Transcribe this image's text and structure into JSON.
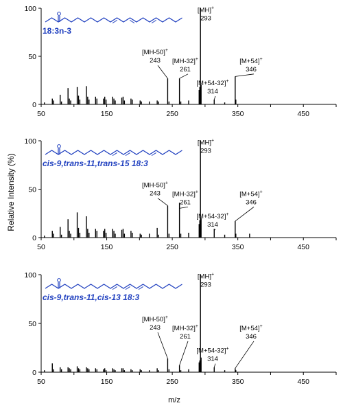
{
  "figure": {
    "ylabel": "Relative Intensity (%)",
    "xlabel": "m/z"
  },
  "chart_data": [
    {
      "type": "bar",
      "title": "18:3n-3",
      "xlim": [
        50,
        500
      ],
      "ylim": [
        0,
        100
      ],
      "x_ticks": [
        "50",
        "150",
        "250",
        "350",
        "450"
      ],
      "y_ticks": [
        "0",
        "50",
        "100"
      ],
      "annotations": [
        {
          "label": "[MH]+",
          "mz": "293"
        },
        {
          "label": "[MH-50]+",
          "mz": "243"
        },
        {
          "label": "[MH-32]+",
          "mz": "261"
        },
        {
          "label": "[M+54-32]+",
          "mz": "314"
        },
        {
          "label": "[M+54]+",
          "mz": "346"
        }
      ],
      "peaks": [
        [
          55,
          2
        ],
        [
          67,
          6
        ],
        [
          69,
          4
        ],
        [
          79,
          10
        ],
        [
          81,
          3
        ],
        [
          91,
          17
        ],
        [
          93,
          6
        ],
        [
          95,
          4
        ],
        [
          105,
          18
        ],
        [
          107,
          9
        ],
        [
          109,
          5
        ],
        [
          119,
          19
        ],
        [
          121,
          8
        ],
        [
          123,
          5
        ],
        [
          133,
          8
        ],
        [
          135,
          6
        ],
        [
          145,
          6
        ],
        [
          147,
          8
        ],
        [
          149,
          5
        ],
        [
          159,
          8
        ],
        [
          161,
          6
        ],
        [
          163,
          4
        ],
        [
          173,
          7
        ],
        [
          175,
          8
        ],
        [
          177,
          4
        ],
        [
          187,
          6
        ],
        [
          189,
          5
        ],
        [
          201,
          4
        ],
        [
          203,
          3
        ],
        [
          215,
          3
        ],
        [
          227,
          4
        ],
        [
          229,
          3
        ],
        [
          243,
          27
        ],
        [
          245,
          3
        ],
        [
          261,
          27
        ],
        [
          263,
          3
        ],
        [
          275,
          4
        ],
        [
          291,
          15
        ],
        [
          292,
          18
        ],
        [
          293,
          100
        ],
        [
          294,
          20
        ],
        [
          314,
          5
        ],
        [
          330,
          2
        ],
        [
          346,
          29
        ],
        [
          347,
          5
        ]
      ]
    },
    {
      "type": "bar",
      "title": "cis-9,trans-11,trans-15 18:3",
      "xlim": [
        50,
        500
      ],
      "ylim": [
        0,
        100
      ],
      "x_ticks": [
        "50",
        "150",
        "250",
        "350",
        "450"
      ],
      "y_ticks": [
        "0",
        "50",
        "100"
      ],
      "annotations": [
        {
          "label": "[MH]+",
          "mz": "293"
        },
        {
          "label": "[MH-50]+",
          "mz": "243"
        },
        {
          "label": "[MH-32]+",
          "mz": "261"
        },
        {
          "label": "[M+54-32]+",
          "mz": "314"
        },
        {
          "label": "[M+54]+",
          "mz": "346"
        }
      ],
      "peaks": [
        [
          55,
          2
        ],
        [
          67,
          7
        ],
        [
          69,
          4
        ],
        [
          79,
          11
        ],
        [
          81,
          3
        ],
        [
          91,
          19
        ],
        [
          93,
          7
        ],
        [
          95,
          4
        ],
        [
          105,
          26
        ],
        [
          107,
          10
        ],
        [
          109,
          5
        ],
        [
          119,
          22
        ],
        [
          121,
          9
        ],
        [
          123,
          5
        ],
        [
          133,
          9
        ],
        [
          135,
          7
        ],
        [
          145,
          7
        ],
        [
          147,
          9
        ],
        [
          149,
          5
        ],
        [
          159,
          9
        ],
        [
          161,
          7
        ],
        [
          163,
          4
        ],
        [
          173,
          8
        ],
        [
          175,
          9
        ],
        [
          177,
          4
        ],
        [
          187,
          7
        ],
        [
          189,
          5
        ],
        [
          201,
          4
        ],
        [
          203,
          3
        ],
        [
          215,
          4
        ],
        [
          227,
          10
        ],
        [
          229,
          3
        ],
        [
          243,
          33
        ],
        [
          245,
          4
        ],
        [
          261,
          36
        ],
        [
          263,
          4
        ],
        [
          275,
          5
        ],
        [
          291,
          14
        ],
        [
          292,
          18
        ],
        [
          293,
          100
        ],
        [
          294,
          20
        ],
        [
          314,
          9
        ],
        [
          330,
          3
        ],
        [
          346,
          17
        ],
        [
          347,
          4
        ],
        [
          368,
          4
        ]
      ]
    },
    {
      "type": "bar",
      "title": "cis-9,trans-11,cis-13 18:3",
      "xlim": [
        50,
        500
      ],
      "ylim": [
        0,
        100
      ],
      "x_ticks": [
        "50",
        "150",
        "250",
        "350",
        "450"
      ],
      "y_ticks": [
        "0",
        "50",
        "100"
      ],
      "annotations": [
        {
          "label": "[MH]+",
          "mz": "293"
        },
        {
          "label": "[MH-50]+",
          "mz": "243"
        },
        {
          "label": "[MH-32]+",
          "mz": "261"
        },
        {
          "label": "[M+54-32]+",
          "mz": "314"
        },
        {
          "label": "[M+54]+",
          "mz": "346"
        }
      ],
      "peaks": [
        [
          55,
          2
        ],
        [
          67,
          9
        ],
        [
          69,
          3
        ],
        [
          79,
          5
        ],
        [
          81,
          3
        ],
        [
          91,
          5
        ],
        [
          93,
          4
        ],
        [
          95,
          3
        ],
        [
          105,
          6
        ],
        [
          107,
          4
        ],
        [
          109,
          3
        ],
        [
          119,
          5
        ],
        [
          121,
          4
        ],
        [
          123,
          3
        ],
        [
          133,
          4
        ],
        [
          135,
          3
        ],
        [
          145,
          3
        ],
        [
          147,
          4
        ],
        [
          149,
          2
        ],
        [
          159,
          4
        ],
        [
          161,
          3
        ],
        [
          163,
          2
        ],
        [
          173,
          4
        ],
        [
          175,
          4
        ],
        [
          177,
          2
        ],
        [
          187,
          3
        ],
        [
          189,
          2
        ],
        [
          201,
          3
        ],
        [
          203,
          2
        ],
        [
          215,
          2
        ],
        [
          227,
          4
        ],
        [
          229,
          2
        ],
        [
          243,
          14
        ],
        [
          245,
          3
        ],
        [
          261,
          7
        ],
        [
          263,
          2
        ],
        [
          275,
          3
        ],
        [
          291,
          10
        ],
        [
          292,
          12
        ],
        [
          293,
          100
        ],
        [
          294,
          15
        ],
        [
          314,
          5
        ],
        [
          330,
          2
        ],
        [
          346,
          4
        ],
        [
          347,
          2
        ]
      ]
    }
  ]
}
